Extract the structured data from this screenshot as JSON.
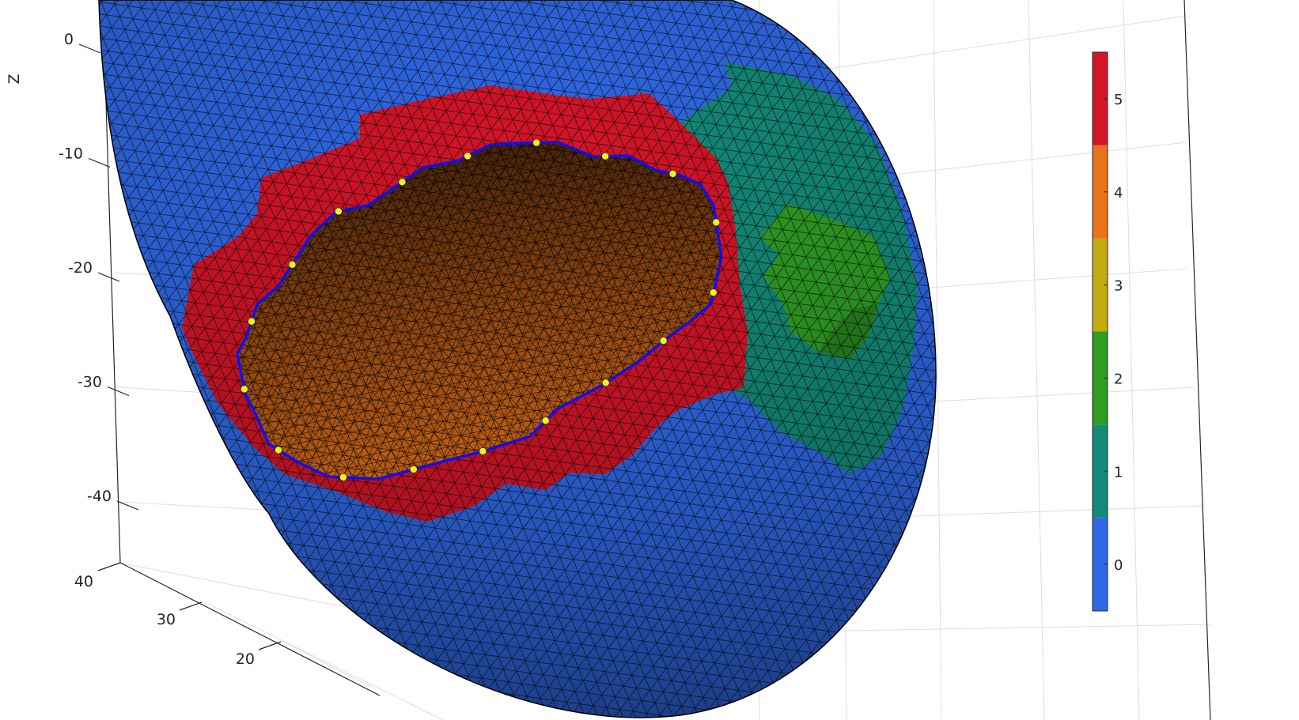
{
  "chart_data": {
    "type": "surface3d",
    "title": "",
    "zlabel": "Z",
    "z_ticks": [
      0,
      -10,
      -20,
      -30,
      -40
    ],
    "y_ticks": [
      40,
      30,
      20
    ],
    "grid": true,
    "colormap": "discrete",
    "colorbar": {
      "position": "right",
      "ticks": [
        0,
        1,
        2,
        3,
        4,
        5
      ],
      "range": [
        -0.5,
        5.5
      ],
      "colors": [
        "#2f68e4",
        "#138a78",
        "#2f9c24",
        "#c3aa11",
        "#e8731a",
        "#d31528"
      ]
    },
    "regions": [
      {
        "value": 0,
        "color": "#2f68e4"
      },
      {
        "value": 1,
        "color": "#138a78"
      },
      {
        "value": 2,
        "color": "#2f9c24"
      },
      {
        "value": 4,
        "color": "#e8731a"
      },
      {
        "value": 5,
        "color": "#d31528"
      }
    ],
    "boundary_curve": {
      "color": "#1010e8",
      "marker_color": "#f2f21a",
      "marker_count": 18
    }
  }
}
